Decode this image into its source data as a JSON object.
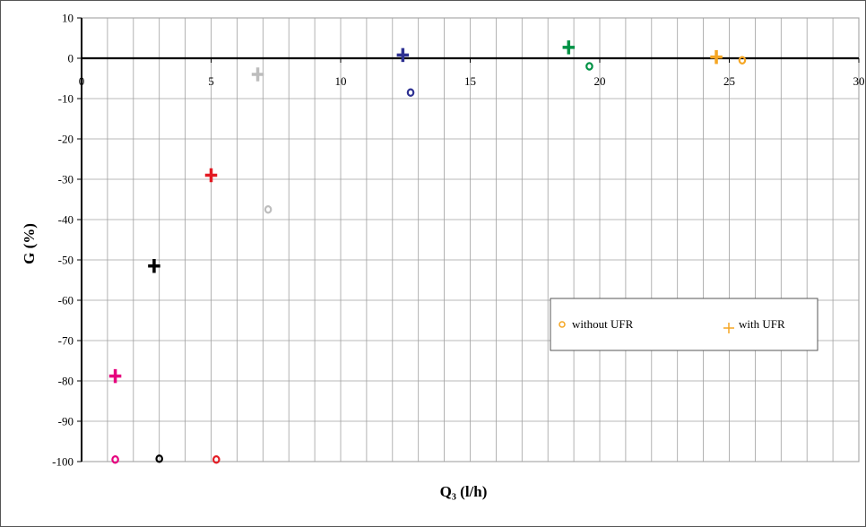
{
  "chart_data": {
    "type": "scatter",
    "xlabel": "Q₃ (l/h)",
    "ylabel": "G (%)",
    "xlim": [
      0,
      30
    ],
    "ylim": [
      -100,
      10
    ],
    "x_ticks": [
      "0",
      "5",
      "10",
      "15",
      "20",
      "25",
      "30"
    ],
    "y_ticks": [
      "10",
      "0",
      "-10",
      "-20",
      "-30",
      "-40",
      "-50",
      "-60",
      "-70",
      "-80",
      "-90",
      "-100"
    ],
    "x_minor_step": 1,
    "y_step": 10,
    "grid": true,
    "legend": {
      "position": "center-right",
      "entries": [
        {
          "label": "without UFR",
          "marker": "circle",
          "color": "#f5a623"
        },
        {
          "label": "with UFR",
          "marker": "plus",
          "color": "#f5a623"
        }
      ]
    },
    "without_ufr": [
      {
        "x": 1.3,
        "y": -99.5,
        "color": "#e6007e"
      },
      {
        "x": 3.0,
        "y": -99.3,
        "color": "#000000"
      },
      {
        "x": 5.2,
        "y": -99.5,
        "color": "#e31b23"
      },
      {
        "x": 7.2,
        "y": -37.5,
        "color": "#bdbdbd"
      },
      {
        "x": 12.7,
        "y": -8.5,
        "color": "#2e3192"
      },
      {
        "x": 19.6,
        "y": -2.0,
        "color": "#009245"
      },
      {
        "x": 25.5,
        "y": -0.5,
        "color": "#f5a623"
      }
    ],
    "with_ufr": [
      {
        "x": 1.3,
        "y": -78.8,
        "color": "#e6007e"
      },
      {
        "x": 2.8,
        "y": -51.5,
        "color": "#000000"
      },
      {
        "x": 5.0,
        "y": -29.0,
        "color": "#e31b23"
      },
      {
        "x": 6.8,
        "y": -4.0,
        "color": "#bdbdbd"
      },
      {
        "x": 12.4,
        "y": 0.8,
        "color": "#2e3192"
      },
      {
        "x": 18.8,
        "y": 2.7,
        "color": "#009245"
      },
      {
        "x": 24.5,
        "y": 0.3,
        "color": "#f5a623"
      }
    ]
  }
}
